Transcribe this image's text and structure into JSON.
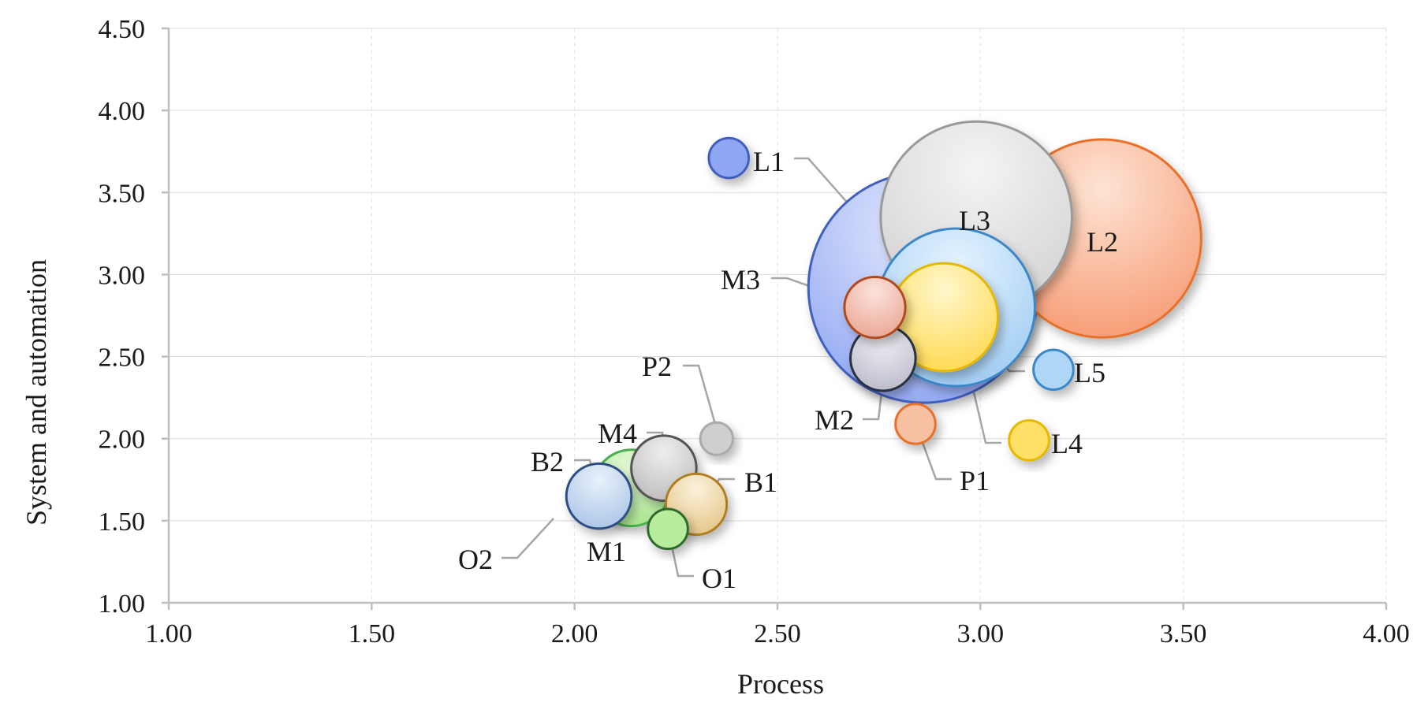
{
  "chart_data": {
    "type": "bubble",
    "xlabel": "Process",
    "ylabel": "System and automation",
    "xlim": [
      1.0,
      4.0
    ],
    "ylim": [
      1.0,
      4.5
    ],
    "xticks": [
      "1.00",
      "1.50",
      "2.00",
      "2.50",
      "3.00",
      "3.50",
      "4.00"
    ],
    "yticks": [
      "1.00",
      "1.50",
      "2.00",
      "2.50",
      "3.00",
      "3.50",
      "4.00",
      "4.50"
    ],
    "grid": true,
    "points": [
      {
        "name": "L1",
        "x": 2.86,
        "y": 2.92,
        "size": 100,
        "color": "#8fa6f2",
        "stroke": "#3f5fbf"
      },
      {
        "name": "L2",
        "x": 3.3,
        "y": 3.22,
        "size": 74,
        "color": "#f79a72",
        "stroke": "#e8702a"
      },
      {
        "name": "L3",
        "x": 2.99,
        "y": 3.35,
        "size": 69,
        "color": "#dedede",
        "stroke": "#9a9a9a"
      },
      {
        "name": "L4",
        "x": 2.91,
        "y": 2.74,
        "size": 22,
        "color": "#ffe066",
        "stroke": "#e6b800"
      },
      {
        "name": "L5",
        "x": 2.94,
        "y": 2.8,
        "size": 47,
        "color": "#aed6f7",
        "stroke": "#3b88c9"
      },
      {
        "name": "M1",
        "x": 2.14,
        "y": 1.7,
        "size": 11,
        "color": "#b6ec9b",
        "stroke": "#4caf50"
      },
      {
        "name": "M2",
        "x": 2.76,
        "y": 2.49,
        "size": 8,
        "color": "#c8c9d6",
        "stroke": "#2c3040"
      },
      {
        "name": "M3",
        "x": 2.74,
        "y": 2.8,
        "size": 7,
        "color": "#f2b4a6",
        "stroke": "#b0481e"
      },
      {
        "name": "M4",
        "x": 2.22,
        "y": 1.82,
        "size": 8,
        "color": "#c8c8c8",
        "stroke": "#555555"
      },
      {
        "name": "B1",
        "x": 2.3,
        "y": 1.6,
        "size": 7,
        "color": "#eed8a8",
        "stroke": "#b07d20"
      },
      {
        "name": "B2",
        "x": 2.06,
        "y": 1.65,
        "size": 8,
        "color": "#bcd3ef",
        "stroke": "#2d4f86"
      },
      {
        "name": "P1",
        "x": 2.84,
        "y": 2.09,
        "size": 3,
        "color": "#f7c0a0",
        "stroke": "#e8702a"
      },
      {
        "name": "P2",
        "x": 2.35,
        "y": 2.0,
        "size": 2,
        "color": "#cfcfcf",
        "stroke": "#aaaaaa"
      },
      {
        "name": "O1",
        "x": 2.23,
        "y": 1.45,
        "size": 3,
        "color": "#b6ec9b",
        "stroke": "#2e6b2e"
      },
      {
        "name": "O2",
        "x": 1.95,
        "y": 1.51,
        "size": 0,
        "color": "#ffffff",
        "stroke": "#ffffff"
      },
      {
        "name": "L5",
        "x": 3.18,
        "y": 2.42,
        "size": 3,
        "color": "#aed6f7",
        "stroke": "#3b88c9"
      },
      {
        "name": "L1",
        "x": 2.38,
        "y": 3.71,
        "size": 3,
        "color": "#8fa6f2",
        "stroke": "#3f5fbf"
      },
      {
        "name": "L4",
        "x": 3.12,
        "y": 1.99,
        "size": 3,
        "color": "#ffe066",
        "stroke": "#e6b800"
      }
    ],
    "labels": [
      {
        "text": "L1",
        "inside": false
      },
      {
        "text": "L2",
        "inside": true
      },
      {
        "text": "L3",
        "inside": true
      },
      {
        "text": "L4",
        "inside": false
      },
      {
        "text": "L5",
        "inside": false
      },
      {
        "text": "M1",
        "inside": false
      },
      {
        "text": "M2",
        "inside": false
      },
      {
        "text": "M3",
        "inside": false
      },
      {
        "text": "M4",
        "inside": false
      },
      {
        "text": "B1",
        "inside": false
      },
      {
        "text": "B2",
        "inside": false
      },
      {
        "text": "P1",
        "inside": false
      },
      {
        "text": "P2",
        "inside": false
      },
      {
        "text": "O1",
        "inside": false
      },
      {
        "text": "O2",
        "inside": false
      }
    ]
  }
}
